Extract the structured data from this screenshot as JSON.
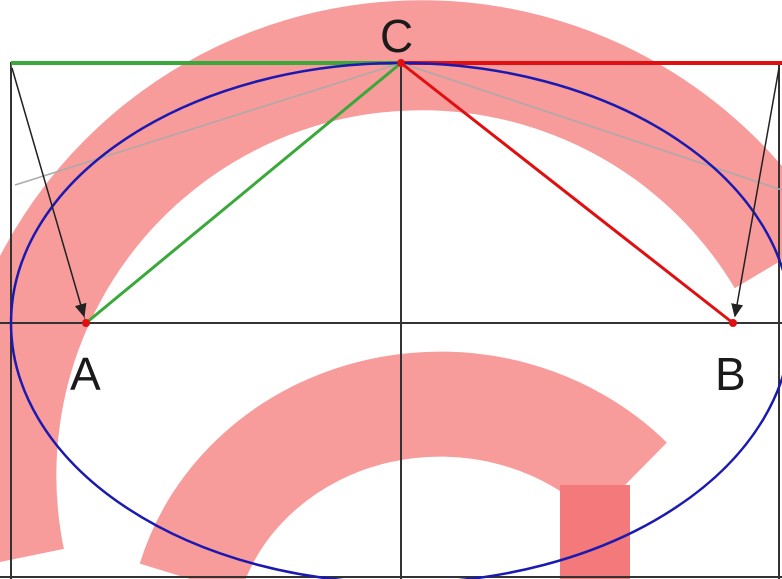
{
  "labels": {
    "a": "A",
    "b": "B",
    "c": "C"
  },
  "colors": {
    "ellipse": "#1a1ab0",
    "green_lines": "#3aa83a",
    "red_lines": "#e01010",
    "axes": "#333333",
    "arrows": "#222222",
    "thin_lines": "#aaaaaa",
    "watermark": "#f4797a"
  }
}
